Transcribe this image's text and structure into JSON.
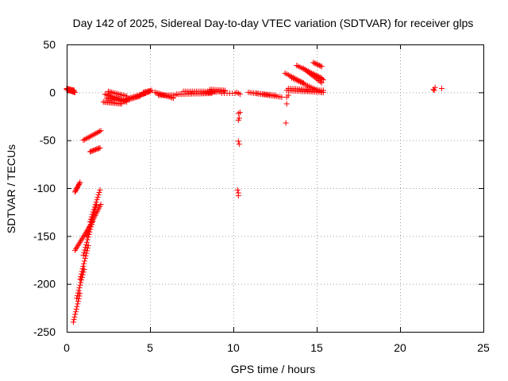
{
  "chart_data": {
    "type": "scatter",
    "title": "Day 142 of 2025, Sidereal Day-to-day VTEC variation (SDTVAR) for receiver glps",
    "xlabel": "GPS time / hours",
    "ylabel": "SDTVAR / TECUs",
    "xlim": [
      0,
      25
    ],
    "ylim": [
      -250,
      50
    ],
    "xticks": [
      0,
      5,
      10,
      15,
      20,
      25
    ],
    "yticks": [
      50,
      0,
      -50,
      -100,
      -150,
      -200,
      -250
    ],
    "xtick_labels": [
      "0",
      "5",
      "10",
      "15",
      "20",
      "25"
    ],
    "ytick_labels": [
      "50",
      "0",
      "-50",
      "-100",
      "-150",
      "-200",
      "-250"
    ],
    "grid": true,
    "marker": "+",
    "color": "#ff0000",
    "segments": [
      {
        "x0": 0.0,
        "y0": 3,
        "x1": 0.5,
        "y1": 0,
        "n": 14
      },
      {
        "x0": 0.0,
        "y0": 4,
        "x1": 0.45,
        "y1": 2,
        "n": 10
      },
      {
        "x0": 0.5,
        "y0": -104,
        "x1": 0.8,
        "y1": -94,
        "n": 10
      },
      {
        "x0": 0.4,
        "y0": -240,
        "x1": 0.8,
        "y1": -210,
        "n": 12
      },
      {
        "x0": 0.6,
        "y0": -215,
        "x1": 1.05,
        "y1": -185,
        "n": 12
      },
      {
        "x0": 0.8,
        "y0": -195,
        "x1": 1.3,
        "y1": -160,
        "n": 14
      },
      {
        "x0": 1.0,
        "y0": -170,
        "x1": 1.55,
        "y1": -135,
        "n": 14
      },
      {
        "x0": 1.2,
        "y0": -150,
        "x1": 1.8,
        "y1": -118,
        "n": 14
      },
      {
        "x0": 1.4,
        "y0": -135,
        "x1": 2.0,
        "y1": -102,
        "n": 14
      },
      {
        "x0": 0.5,
        "y0": -165,
        "x1": 1.45,
        "y1": -138,
        "n": 18
      },
      {
        "x0": 1.45,
        "y0": -138,
        "x1": 2.05,
        "y1": -117,
        "n": 12
      },
      {
        "x0": 1.0,
        "y0": -50,
        "x1": 2.05,
        "y1": -40,
        "n": 14
      },
      {
        "x0": 1.4,
        "y0": -62,
        "x1": 2.0,
        "y1": -58,
        "n": 10
      },
      {
        "x0": 2.2,
        "y0": -10,
        "x1": 3.3,
        "y1": -12,
        "n": 14
      },
      {
        "x0": 2.3,
        "y0": -2,
        "x1": 3.4,
        "y1": -8,
        "n": 14
      },
      {
        "x0": 2.4,
        "y0": -6,
        "x1": 3.6,
        "y1": -10,
        "n": 14
      },
      {
        "x0": 2.5,
        "y0": 1,
        "x1": 3.6,
        "y1": -4,
        "n": 12
      },
      {
        "x0": 3.4,
        "y0": -9,
        "x1": 4.4,
        "y1": -4,
        "n": 14
      },
      {
        "x0": 3.6,
        "y0": -7,
        "x1": 4.7,
        "y1": -1,
        "n": 14
      },
      {
        "x0": 4.4,
        "y0": -3,
        "x1": 5.0,
        "y1": 1,
        "n": 10
      },
      {
        "x0": 4.6,
        "y0": 0,
        "x1": 5.1,
        "y1": 2,
        "n": 8
      },
      {
        "x0": 5.3,
        "y0": 0,
        "x1": 6.4,
        "y1": -6,
        "n": 14
      },
      {
        "x0": 5.5,
        "y0": -3,
        "x1": 6.5,
        "y1": -3,
        "n": 12
      },
      {
        "x0": 6.6,
        "y0": -2,
        "x1": 8.7,
        "y1": -1,
        "n": 22
      },
      {
        "x0": 7.0,
        "y0": 1,
        "x1": 8.9,
        "y1": 1,
        "n": 18
      },
      {
        "x0": 8.0,
        "y0": -1,
        "x1": 9.4,
        "y1": 1,
        "n": 14
      },
      {
        "x0": 8.6,
        "y0": 3,
        "x1": 9.5,
        "y1": 2,
        "n": 10
      },
      {
        "x0": 9.3,
        "y0": -1,
        "x1": 10.1,
        "y1": -1,
        "n": 6
      },
      {
        "x0": 10.2,
        "y0": 0,
        "x1": 10.4,
        "y1": -2,
        "n": 3
      },
      {
        "x0": 10.9,
        "y0": 0,
        "x1": 12.9,
        "y1": -5,
        "n": 20
      },
      {
        "x0": 11.4,
        "y0": -1,
        "x1": 12.5,
        "y1": -3,
        "n": 10
      },
      {
        "x0": 13.1,
        "y0": 20,
        "x1": 14.2,
        "y1": 10,
        "n": 12
      },
      {
        "x0": 13.5,
        "y0": 15,
        "x1": 15.3,
        "y1": 0,
        "n": 18
      },
      {
        "x0": 13.8,
        "y0": 28,
        "x1": 15.3,
        "y1": 15,
        "n": 16
      },
      {
        "x0": 14.2,
        "y0": 25,
        "x1": 15.3,
        "y1": 10,
        "n": 14
      },
      {
        "x0": 14.6,
        "y0": 20,
        "x1": 15.4,
        "y1": 13,
        "n": 10
      },
      {
        "x0": 13.2,
        "y0": 2,
        "x1": 15.4,
        "y1": 0,
        "n": 22
      },
      {
        "x0": 13.3,
        "y0": 4,
        "x1": 15.4,
        "y1": 2,
        "n": 20
      },
      {
        "x0": 14.8,
        "y0": 31,
        "x1": 15.3,
        "y1": 27,
        "n": 8
      }
    ],
    "points": [
      [
        10.3,
        -22
      ],
      [
        10.35,
        -27
      ],
      [
        10.3,
        -29
      ],
      [
        10.4,
        -21
      ],
      [
        10.3,
        -51
      ],
      [
        10.35,
        -54
      ],
      [
        10.25,
        -102
      ],
      [
        10.3,
        -105
      ],
      [
        10.3,
        -108
      ],
      [
        13.2,
        -5
      ],
      [
        13.2,
        -12
      ],
      [
        13.15,
        -32
      ],
      [
        13.3,
        -3
      ],
      [
        22.0,
        3
      ],
      [
        22.1,
        5
      ],
      [
        22.5,
        4
      ],
      [
        22.05,
        2
      ]
    ]
  }
}
